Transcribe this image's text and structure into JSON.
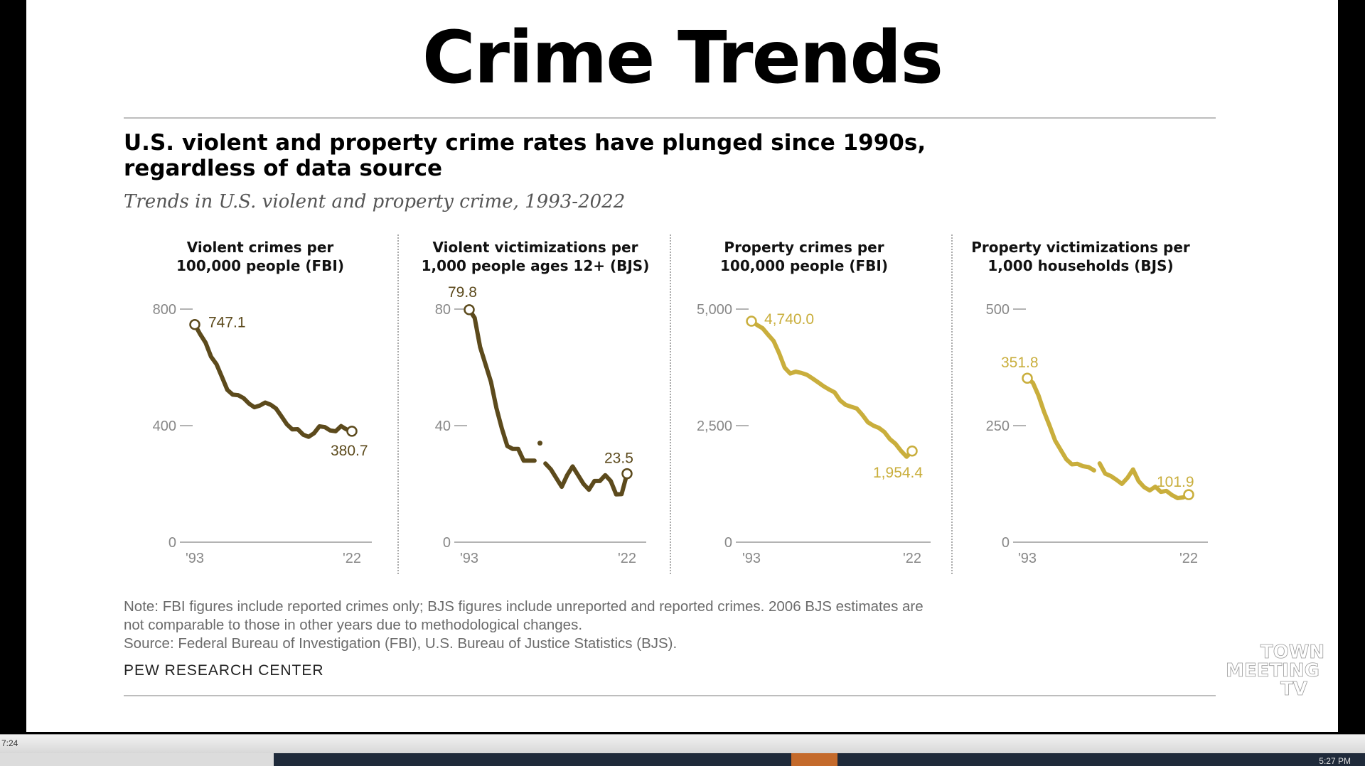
{
  "slide": {
    "title": "Crime Trends"
  },
  "headline": {
    "line1": "U.S. violent and property crime rates have plunged since 1990s,",
    "line2": "regardless of data source"
  },
  "subhead": "Trends in U.S. violent and property crime, 1993-2022",
  "colors": {
    "dark": "#5c4a1c",
    "gold": "#c9ae3c",
    "axis": "#9a9a9a",
    "tick_text": "#888888"
  },
  "chart_data": [
    {
      "type": "line",
      "title_line1": "Violent crimes per",
      "title_line2": "100,000 people (FBI)",
      "color": "dark",
      "ylim": [
        0,
        800
      ],
      "yticks": [
        {
          "v": 0,
          "label": "0"
        },
        {
          "v": 400,
          "label": "400"
        },
        {
          "v": 800,
          "label": "800"
        }
      ],
      "xticks": [
        "'93",
        "'22"
      ],
      "x": [
        1993,
        1994,
        1995,
        1996,
        1997,
        1998,
        1999,
        2000,
        2001,
        2002,
        2003,
        2004,
        2005,
        2006,
        2007,
        2008,
        2009,
        2010,
        2011,
        2012,
        2013,
        2014,
        2015,
        2016,
        2017,
        2018,
        2019,
        2020,
        2021,
        2022
      ],
      "values": [
        747.1,
        713.6,
        684.5,
        636.6,
        611.0,
        567.6,
        523.0,
        506.5,
        504.5,
        494.4,
        475.8,
        463.2,
        469.0,
        479.3,
        471.8,
        458.6,
        431.9,
        404.5,
        387.1,
        387.8,
        369.1,
        361.6,
        373.7,
        397.5,
        394.9,
        383.4,
        380.8,
        398.5,
        387.0,
        380.7
      ],
      "start_label": "747.1",
      "end_label": "380.7"
    },
    {
      "type": "line",
      "title_line1": "Violent victimizations per",
      "title_line2": "1,000 people ages 12+ (BJS)",
      "color": "dark",
      "ylim": [
        0,
        80
      ],
      "yticks": [
        {
          "v": 0,
          "label": "0"
        },
        {
          "v": 40,
          "label": "40"
        },
        {
          "v": 80,
          "label": "80"
        }
      ],
      "xticks": [
        "'93",
        "'22"
      ],
      "x": [
        1993,
        1994,
        1995,
        1996,
        1997,
        1998,
        1999,
        2000,
        2001,
        2002,
        2003,
        2004,
        2005,
        2006,
        2007,
        2008,
        2009,
        2010,
        2011,
        2012,
        2013,
        2014,
        2015,
        2016,
        2017,
        2018,
        2019,
        2020,
        2021,
        2022
      ],
      "values": [
        79.8,
        77.0,
        67.0,
        61.0,
        55.0,
        46.0,
        39.0,
        33.0,
        32.0,
        32.0,
        28.0,
        28.0,
        28.0,
        34.0,
        27.0,
        25.0,
        22.0,
        19.0,
        23.0,
        26.0,
        23.0,
        20.0,
        18.0,
        21.0,
        21.0,
        23.0,
        21.0,
        16.4,
        16.5,
        23.5
      ],
      "gap_after_year": 2005,
      "isolated_year": 2006,
      "start_label": "79.8",
      "end_label": "23.5"
    },
    {
      "type": "line",
      "title_line1": "Property crimes per",
      "title_line2": "100,000 people (FBI)",
      "color": "gold",
      "ylim": [
        0,
        5000
      ],
      "yticks": [
        {
          "v": 0,
          "label": "0"
        },
        {
          "v": 2500,
          "label": "2,500"
        },
        {
          "v": 5000,
          "label": "5,000"
        }
      ],
      "xticks": [
        "'93",
        "'22"
      ],
      "x": [
        1993,
        1994,
        1995,
        1996,
        1997,
        1998,
        1999,
        2000,
        2001,
        2002,
        2003,
        2004,
        2005,
        2006,
        2007,
        2008,
        2009,
        2010,
        2011,
        2012,
        2013,
        2014,
        2015,
        2016,
        2017,
        2018,
        2019,
        2020,
        2021,
        2022
      ],
      "values": [
        4740.0,
        4660.2,
        4590.5,
        4451.0,
        4316.3,
        4052.5,
        3743.6,
        3618.3,
        3658.1,
        3630.6,
        3591.2,
        3514.1,
        3431.5,
        3346.6,
        3276.4,
        3214.6,
        3041.3,
        2945.9,
        2905.4,
        2868.0,
        2733.6,
        2574.1,
        2500.5,
        2451.6,
        2362.2,
        2209.8,
        2109.9,
        1958.2,
        1832.3,
        1954.4
      ],
      "start_label": "4,740.0",
      "end_label": "1,954.4"
    },
    {
      "type": "line",
      "title_line1": "Property victimizations per",
      "title_line2": "1,000 households (BJS)",
      "color": "gold",
      "ylim": [
        0,
        500
      ],
      "yticks": [
        {
          "v": 0,
          "label": "0"
        },
        {
          "v": 250,
          "label": "250"
        },
        {
          "v": 500,
          "label": "500"
        }
      ],
      "xticks": [
        "'93",
        "'22"
      ],
      "x": [
        1993,
        1994,
        1995,
        1996,
        1997,
        1998,
        1999,
        2000,
        2001,
        2002,
        2003,
        2004,
        2005,
        2006,
        2007,
        2008,
        2009,
        2010,
        2011,
        2012,
        2013,
        2014,
        2015,
        2016,
        2017,
        2018,
        2019,
        2020,
        2021,
        2022
      ],
      "values": [
        351.8,
        342.0,
        315.0,
        280.0,
        250.0,
        218.0,
        198.0,
        178.0,
        167.0,
        168.0,
        163.0,
        161.0,
        154.0,
        169.0,
        147.0,
        142.0,
        134.0,
        125.0,
        138.0,
        156.0,
        131.0,
        118.0,
        111.0,
        119.0,
        108.0,
        110.0,
        101.0,
        94.5,
        96.0,
        101.9
      ],
      "gap_after_year": 2005,
      "start_label": "351.8",
      "end_label": "101.9"
    }
  ],
  "footer": {
    "note_line1": "Note: FBI figures include reported crimes only; BJS figures include unreported and reported crimes. 2006 BJS estimates are",
    "note_line2": "not comparable to those in other years due to methodological changes.",
    "source": "Source: Federal Bureau of Investigation (FBI), U.S. Bureau of Justice Statistics (BJS).",
    "org": "PEW RESEARCH CENTER"
  },
  "logo": {
    "line1": "TOWN",
    "line2": "MEETING",
    "line3": "TV"
  },
  "taskbar": {
    "time_left": "7:24",
    "clock": "5:27 PM"
  }
}
